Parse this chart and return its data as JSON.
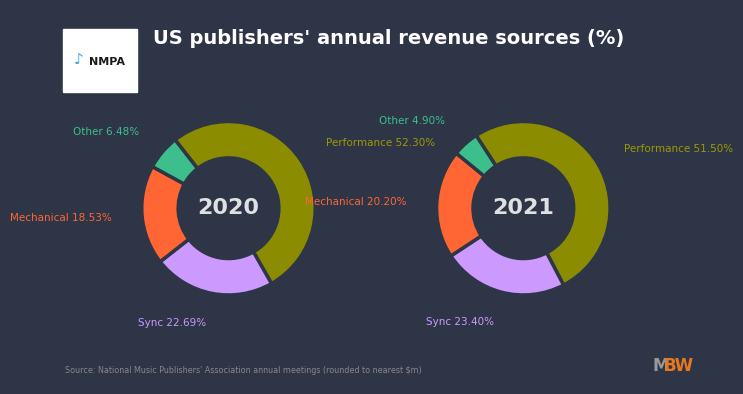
{
  "title": "US publishers' annual revenue sources (%)",
  "background_color": "#2e3547",
  "charts": [
    {
      "year": "2020",
      "values": [
        52.3,
        22.69,
        18.53,
        6.48
      ],
      "labels": [
        "Performance 52.30%",
        "Sync 22.69%",
        "Mechanical 18.53%",
        "Other 6.48%"
      ],
      "colors": [
        "#8B8C00",
        "#CC99FF",
        "#FF6633",
        "#3DBF8C"
      ],
      "label_colors": [
        "#9B9B00",
        "#CC99FF",
        "#FF6633",
        "#3DBF8C"
      ],
      "startangle": 128
    },
    {
      "year": "2021",
      "values": [
        51.5,
        23.4,
        20.2,
        4.9
      ],
      "labels": [
        "Performance 51.50%",
        "Sync 23.40%",
        "Mechanical 20.20%",
        "Other 4.90%"
      ],
      "colors": [
        "#8B8C00",
        "#CC99FF",
        "#FF6633",
        "#3DBF8C"
      ],
      "label_colors": [
        "#9B9B00",
        "#CC99FF",
        "#FF6633",
        "#3DBF8C"
      ],
      "startangle": 123
    }
  ],
  "source_text": "Source: National Music Publishers' Association annual meetings (rounded to nearest $m)",
  "donut_width": 0.42,
  "year_fontsize": 16,
  "label_fontsize": 7.5,
  "title_fontsize": 14
}
